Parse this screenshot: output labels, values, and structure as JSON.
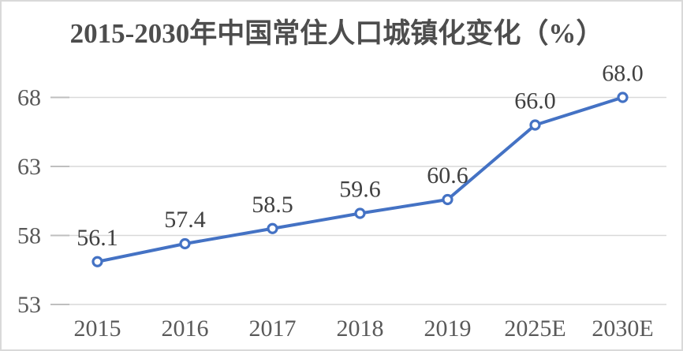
{
  "window": {
    "background": "#ffffff",
    "border_color": "#d9d9d9"
  },
  "chart_data": {
    "type": "line",
    "title": "2015-2030年中国常住人口城镇化变化（%）",
    "categories": [
      "2015",
      "2016",
      "2017",
      "2018",
      "2019",
      "2025E",
      "2030E"
    ],
    "values": [
      56.1,
      57.4,
      58.5,
      59.6,
      60.6,
      66.0,
      68.0
    ],
    "data_labels": [
      "56.1",
      "57.4",
      "58.5",
      "59.6",
      "60.6",
      "66.0",
      "68.0"
    ],
    "xlabel": "",
    "ylabel": "",
    "ylim": [
      53,
      68
    ],
    "y_ticks": [
      53,
      58,
      63,
      68
    ],
    "grid": true,
    "legend_position": "none",
    "series_color": "#4472C4",
    "marker": {
      "shape": "circle-open",
      "fill": "#ffffff",
      "stroke": "#4472C4"
    },
    "grid_color": "#d9d9d9",
    "tick_color": "#bfbfbf",
    "axis_label_color": "#595959",
    "data_label_color": "#404040",
    "title_color": "#4d4d4d"
  }
}
